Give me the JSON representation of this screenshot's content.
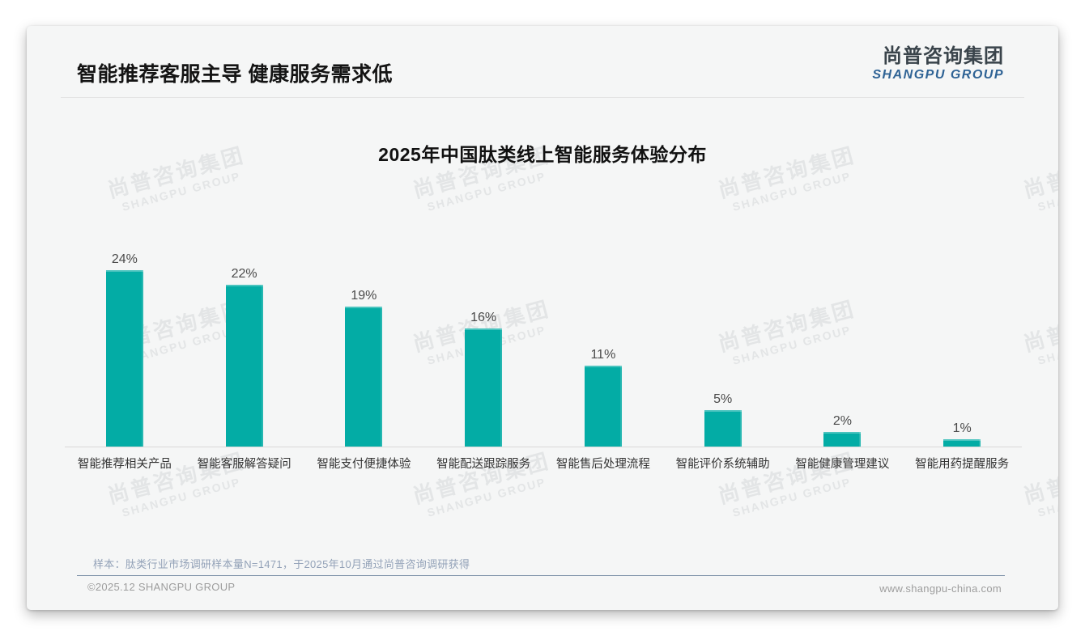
{
  "header": {
    "title": "智能推荐客服主导 健康服务需求低"
  },
  "logo": {
    "cn": "尚普咨询集团",
    "en": "SHANGPU GROUP"
  },
  "watermark": {
    "cn": "尚普咨询集团",
    "en": "SHANGPU GROUP"
  },
  "chart_data": {
    "type": "bar",
    "title": "2025年中国肽类线上智能服务体验分布",
    "categories": [
      "智能推荐相关产品",
      "智能客服解答疑问",
      "智能支付便捷体验",
      "智能配送跟踪服务",
      "智能售后处理流程",
      "智能评价系统辅助",
      "智能健康管理建议",
      "智能用药提醒服务"
    ],
    "values": [
      24,
      22,
      19,
      16,
      11,
      5,
      2,
      1
    ],
    "unit": "%",
    "data_labels": [
      "24%",
      "22%",
      "19%",
      "16%",
      "11%",
      "5%",
      "2%",
      "1%"
    ],
    "bar_color": "#03aca5",
    "ylim": [
      0,
      26
    ],
    "grid": false,
    "legend": "none",
    "xlabel": "",
    "ylabel": ""
  },
  "footer": {
    "note": "样本：肽类行业市场调研样本量N=1471，于2025年10月通过尚普咨询调研获得",
    "copyright": "©2025.12 SHANGPU GROUP",
    "website": "www.shangpu-china.com"
  }
}
